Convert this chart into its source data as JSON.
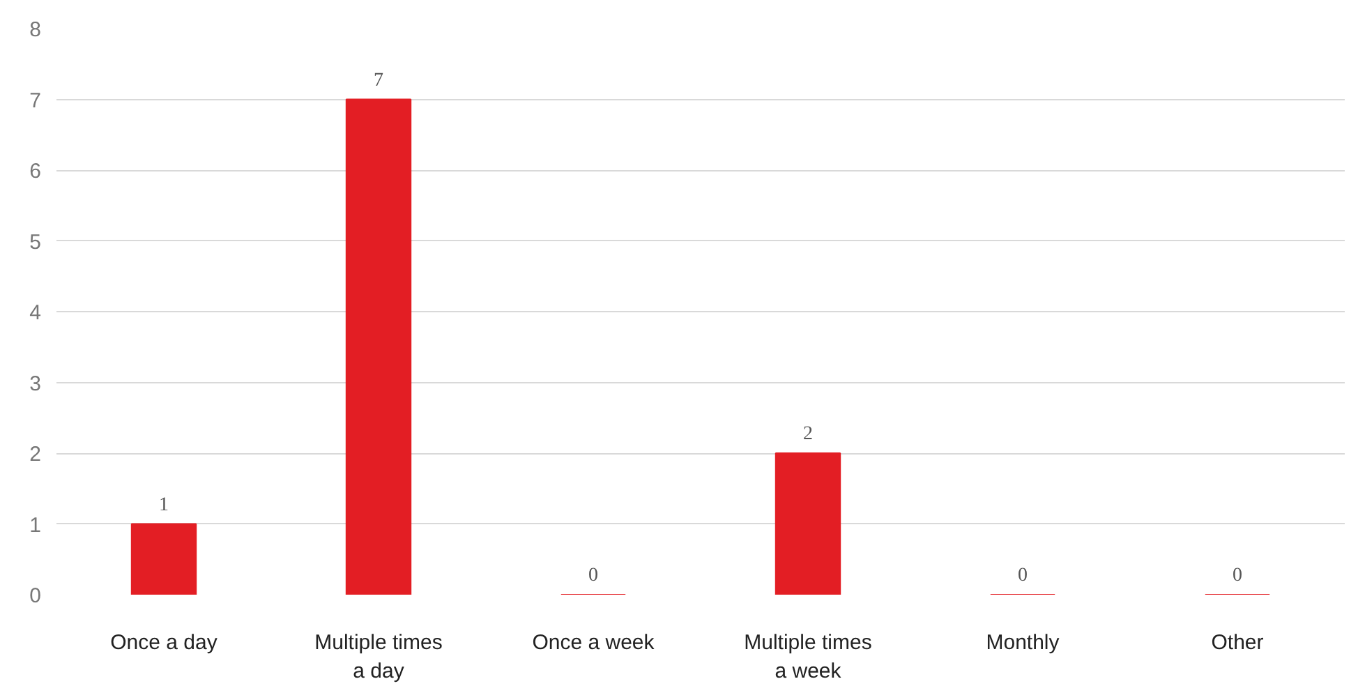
{
  "chart_data": {
    "type": "bar",
    "categories": [
      "Once a day",
      "Multiple times a day",
      "Once a week",
      "Multiple times a week",
      "Monthly",
      "Other"
    ],
    "values": [
      1,
      7,
      0,
      2,
      0,
      0
    ],
    "color": "#e31e24",
    "ylim": [
      0,
      8
    ],
    "yticks": [
      0,
      1,
      2,
      3,
      4,
      5,
      6,
      7,
      8
    ],
    "grid": "y",
    "data_labels": true
  }
}
